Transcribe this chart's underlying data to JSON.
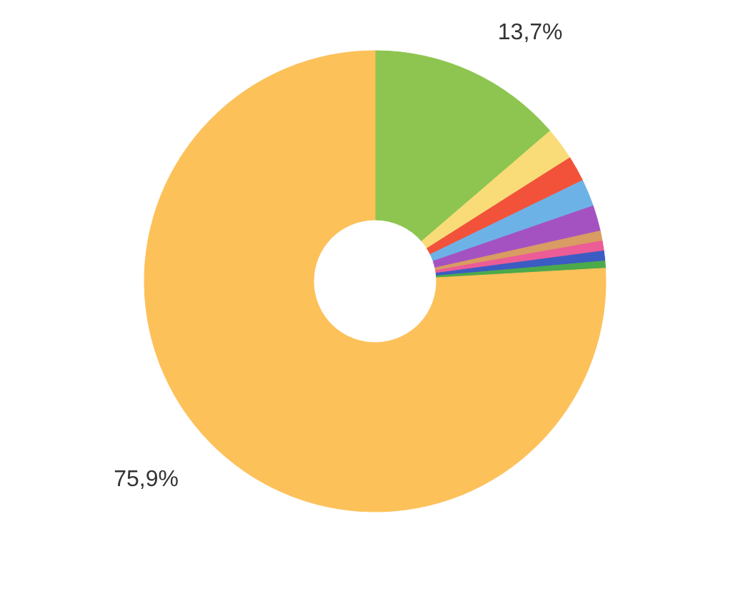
{
  "chart_data": {
    "type": "donut",
    "categories": [
      null,
      null,
      null,
      null,
      null,
      null,
      null,
      null,
      null,
      null
    ],
    "values": [
      13.7,
      2.3,
      1.8,
      1.9,
      1.8,
      0.7,
      0.7,
      0.7,
      0.5,
      75.9
    ],
    "colors": [
      "#8dc550",
      "#f9dc78",
      "#f2523a",
      "#6db2e6",
      "#a452c2",
      "#d99c62",
      "#ec5c96",
      "#3b5cc2",
      "#4caa4a",
      "#fdc15a"
    ],
    "value_labels": [
      "13,7%",
      null,
      null,
      null,
      null,
      null,
      null,
      null,
      null,
      "75,9%"
    ]
  }
}
